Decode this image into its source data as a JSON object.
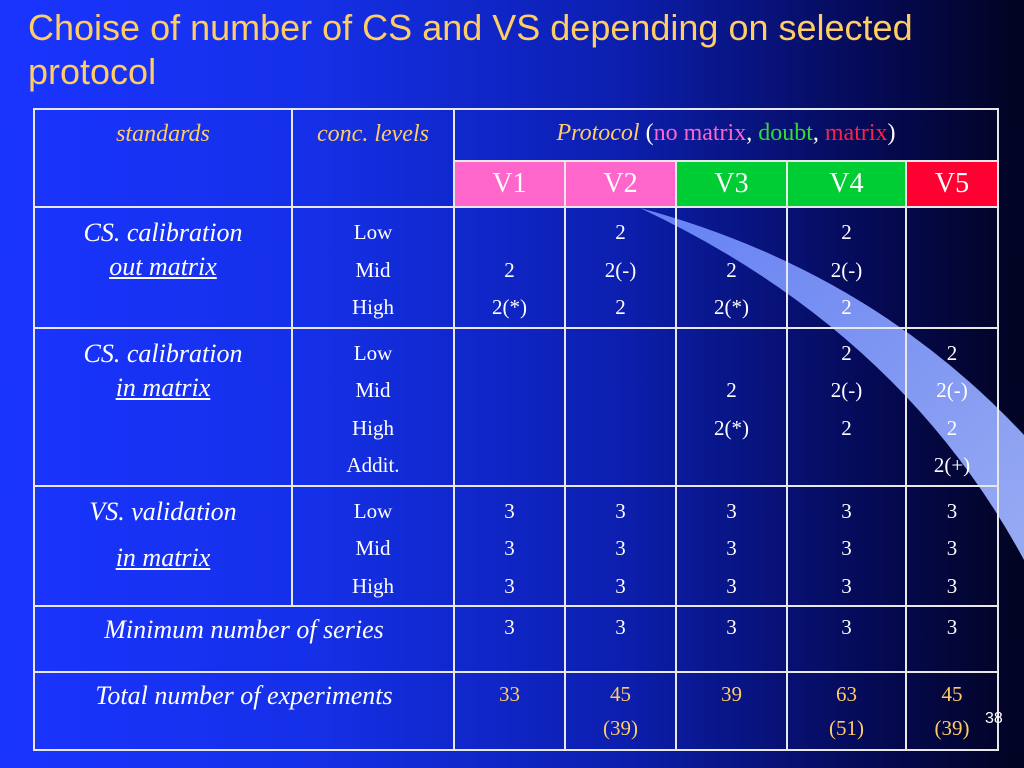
{
  "title": "Choise of number of CS and VS depending on selected protocol",
  "header": {
    "standards": "standards",
    "conc_levels": "conc. levels",
    "protocol_label": "Protocol",
    "protocol_open": "(",
    "no_matrix": "no matrix",
    "comma1": ", ",
    "doubt": "doubt",
    "comma2": ", ",
    "matrix": "matrix",
    "protocol_close": ")",
    "versions": [
      {
        "label": "V1",
        "color": "#ff66cc"
      },
      {
        "label": "V2",
        "color": "#ff66cc"
      },
      {
        "label": "V3",
        "color": "#00cc33"
      },
      {
        "label": "V4",
        "color": "#00cc33"
      },
      {
        "label": "V5",
        "color": "#ff0033"
      }
    ]
  },
  "rows": {
    "cs_out": {
      "label_line1": "CS. calibration",
      "label_line2": "out matrix",
      "levels": [
        "Low",
        "Mid",
        "High"
      ],
      "V1": [
        "",
        "2",
        "2(*)"
      ],
      "V2": [
        "2",
        "2(-)",
        "2"
      ],
      "V3": [
        "",
        "2",
        "2(*)"
      ],
      "V4": [
        "2",
        "2(-)",
        "2"
      ],
      "V5": [
        "",
        "",
        ""
      ]
    },
    "cs_in": {
      "label_line1": "CS. calibration",
      "label_line2": "in matrix",
      "levels": [
        "Low",
        "Mid",
        "High",
        "Addit."
      ],
      "V1": [
        "",
        "",
        "",
        ""
      ],
      "V2": [
        "",
        "",
        "",
        ""
      ],
      "V3": [
        "",
        "2",
        "2(*)",
        ""
      ],
      "V4": [
        "2",
        "2(-)",
        "2",
        ""
      ],
      "V5": [
        "2",
        "2(-)",
        "2",
        "2(+)"
      ]
    },
    "vs": {
      "label_line1": "VS. validation",
      "label_line2": "in matrix",
      "levels": [
        "Low",
        "Mid",
        "High"
      ],
      "V1": [
        "3",
        "3",
        "3"
      ],
      "V2": [
        "3",
        "3",
        "3"
      ],
      "V3": [
        "3",
        "3",
        "3"
      ],
      "V4": [
        "3",
        "3",
        "3"
      ],
      "V5": [
        "3",
        "3",
        "3"
      ]
    },
    "min_series": {
      "label": "Minimum number of series",
      "values": [
        "3",
        "3",
        "3",
        "3",
        "3"
      ]
    },
    "total": {
      "label": "Total number of experiments",
      "values": [
        [
          "33",
          ""
        ],
        [
          "45",
          "(39)"
        ],
        [
          "39",
          ""
        ],
        [
          "63",
          "(51)"
        ],
        [
          "45",
          "(39)"
        ]
      ]
    }
  },
  "slide_number": "38"
}
